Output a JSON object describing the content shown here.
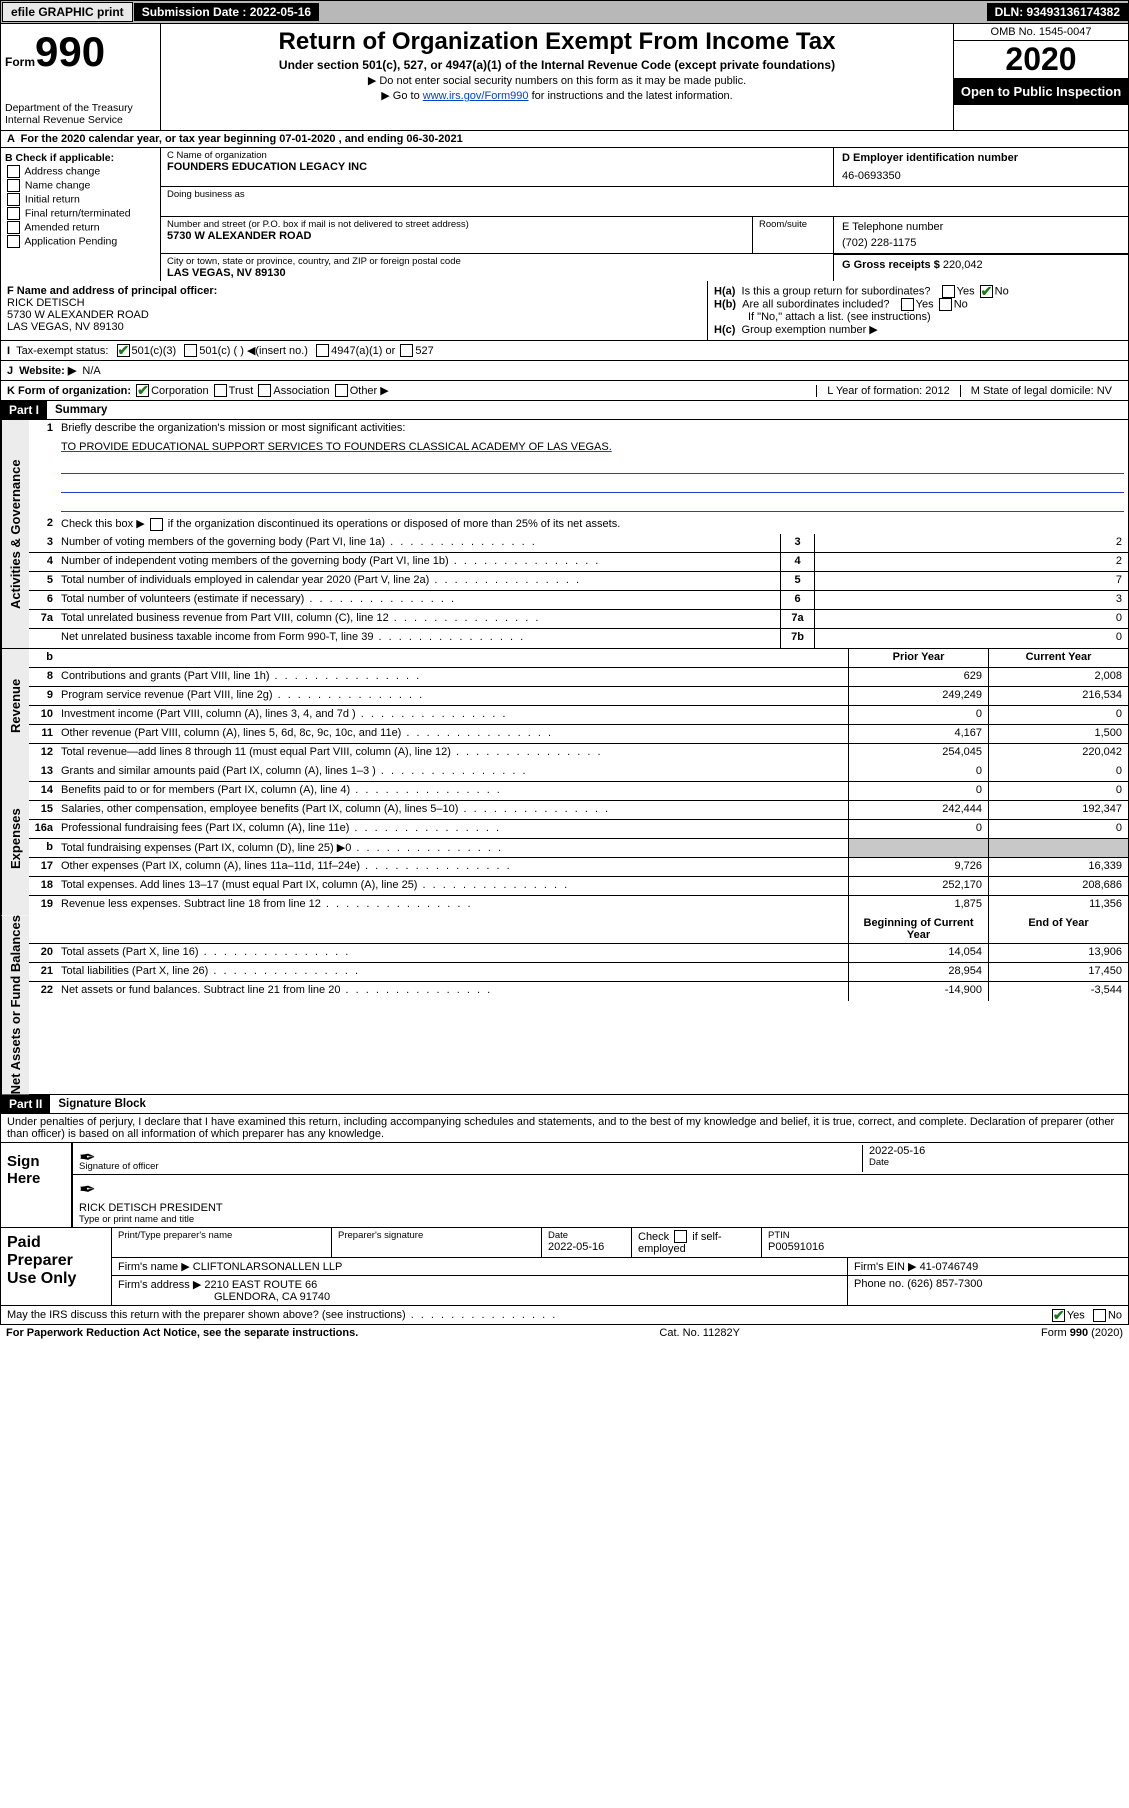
{
  "topbar": {
    "efile": "efile GRAPHIC print",
    "sub_label": "Submission Date : 2022-05-16",
    "dln_label": "DLN: 93493136174382"
  },
  "header": {
    "form_label": "Form",
    "form_num": "990",
    "dept": "Department of the Treasury\nInternal Revenue Service",
    "title": "Return of Organization Exempt From Income Tax",
    "subtitle": "Under section 501(c), 527, or 4947(a)(1) of the Internal Revenue Code (except private foundations)",
    "line1": "Do not enter social security numbers on this form as it may be made public.",
    "line2_pre": "Go to ",
    "line2_link": "www.irs.gov/Form990",
    "line2_post": " for instructions and the latest information.",
    "omb": "OMB No. 1545-0047",
    "year": "2020",
    "inspect": "Open to Public Inspection"
  },
  "row_a": "For the 2020 calendar year, or tax year beginning 07-01-2020    , and ending 06-30-2021",
  "col_b": {
    "hdr": "B Check if applicable:",
    "opts": [
      "Address change",
      "Name change",
      "Initial return",
      "Final return/terminated",
      "Amended return",
      "Application Pending"
    ]
  },
  "col_c": {
    "name_lbl": "C Name of organization",
    "name": "FOUNDERS EDUCATION LEGACY INC",
    "dba_lbl": "Doing business as",
    "addr_lbl": "Number and street (or P.O. box if mail is not delivered to street address)",
    "room_lbl": "Room/suite",
    "addr": "5730 W ALEXANDER ROAD",
    "city_lbl": "City or town, state or province, country, and ZIP or foreign postal code",
    "city": "LAS VEGAS, NV  89130"
  },
  "col_d": {
    "lbl": "D Employer identification number",
    "val": "46-0693350"
  },
  "col_e": {
    "lbl": "E Telephone number",
    "val": "(702) 228-1175"
  },
  "col_g": {
    "lbl": "G Gross receipts $ ",
    "val": "220,042"
  },
  "col_f": {
    "lbl": "F Name and address of principal officer:",
    "name": "RICK DETISCH",
    "addr1": "5730 W ALEXANDER ROAD",
    "addr2": "LAS VEGAS, NV  89130"
  },
  "col_h": {
    "a": "Is this a group return for subordinates?",
    "b": "Are all subordinates included?",
    "note": "If \"No,\" attach a list. (see instructions)",
    "c": "Group exemption number ▶"
  },
  "row_i": {
    "lbl": "Tax-exempt status:",
    "o1": "501(c)(3)",
    "o2": "501(c) (  ) ◀(insert no.)",
    "o3": "4947(a)(1) or",
    "o4": "527"
  },
  "row_j": {
    "lbl": "Website: ▶",
    "val": "N/A"
  },
  "row_k": {
    "lbl": "K Form of organization:",
    "o1": "Corporation",
    "o2": "Trust",
    "o3": "Association",
    "o4": "Other ▶",
    "l": "L Year of formation: 2012",
    "m": "M State of legal domicile: NV"
  },
  "part1": {
    "hdr": "Part I",
    "title": "Summary"
  },
  "summary": {
    "l1_lbl": "Briefly describe the organization's mission or most significant activities:",
    "l1_val": "TO PROVIDE EDUCATIONAL SUPPORT SERVICES TO FOUNDERS CLASSICAL ACADEMY OF LAS VEGAS.",
    "l2": "Check this box ▶      if the organization discontinued its operations or disposed of more than 25% of its net assets.",
    "rows_a": [
      {
        "n": "3",
        "d": "Number of voting members of the governing body (Part VI, line 1a)",
        "b": "3",
        "v": "2"
      },
      {
        "n": "4",
        "d": "Number of independent voting members of the governing body (Part VI, line 1b)",
        "b": "4",
        "v": "2"
      },
      {
        "n": "5",
        "d": "Total number of individuals employed in calendar year 2020 (Part V, line 2a)",
        "b": "5",
        "v": "7"
      },
      {
        "n": "6",
        "d": "Total number of volunteers (estimate if necessary)",
        "b": "6",
        "v": "3"
      },
      {
        "n": "7a",
        "d": "Total unrelated business revenue from Part VIII, column (C), line 12",
        "b": "7a",
        "v": "0"
      },
      {
        "n": "",
        "d": "Net unrelated business taxable income from Form 990-T, line 39",
        "b": "7b",
        "v": "0"
      }
    ],
    "col_hdr_prior": "Prior Year",
    "col_hdr_curr": "Current Year",
    "rows_rev": [
      {
        "n": "8",
        "d": "Contributions and grants (Part VIII, line 1h)",
        "p": "629",
        "c": "2,008"
      },
      {
        "n": "9",
        "d": "Program service revenue (Part VIII, line 2g)",
        "p": "249,249",
        "c": "216,534"
      },
      {
        "n": "10",
        "d": "Investment income (Part VIII, column (A), lines 3, 4, and 7d )",
        "p": "0",
        "c": "0"
      },
      {
        "n": "11",
        "d": "Other revenue (Part VIII, column (A), lines 5, 6d, 8c, 9c, 10c, and 11e)",
        "p": "4,167",
        "c": "1,500"
      },
      {
        "n": "12",
        "d": "Total revenue—add lines 8 through 11 (must equal Part VIII, column (A), line 12)",
        "p": "254,045",
        "c": "220,042"
      }
    ],
    "rows_exp": [
      {
        "n": "13",
        "d": "Grants and similar amounts paid (Part IX, column (A), lines 1–3 )",
        "p": "0",
        "c": "0"
      },
      {
        "n": "14",
        "d": "Benefits paid to or for members (Part IX, column (A), line 4)",
        "p": "0",
        "c": "0"
      },
      {
        "n": "15",
        "d": "Salaries, other compensation, employee benefits (Part IX, column (A), lines 5–10)",
        "p": "242,444",
        "c": "192,347"
      },
      {
        "n": "16a",
        "d": "Professional fundraising fees (Part IX, column (A), line 11e)",
        "p": "0",
        "c": "0"
      },
      {
        "n": "b",
        "d": "Total fundraising expenses (Part IX, column (D), line 25) ▶0",
        "p": "grey",
        "c": "grey"
      },
      {
        "n": "17",
        "d": "Other expenses (Part IX, column (A), lines 11a–11d, 11f–24e)",
        "p": "9,726",
        "c": "16,339"
      },
      {
        "n": "18",
        "d": "Total expenses. Add lines 13–17 (must equal Part IX, column (A), line 25)",
        "p": "252,170",
        "c": "208,686"
      },
      {
        "n": "19",
        "d": "Revenue less expenses. Subtract line 18 from line 12",
        "p": "1,875",
        "c": "11,356"
      }
    ],
    "col_hdr_beg": "Beginning of Current Year",
    "col_hdr_end": "End of Year",
    "rows_net": [
      {
        "n": "20",
        "d": "Total assets (Part X, line 16)",
        "p": "14,054",
        "c": "13,906"
      },
      {
        "n": "21",
        "d": "Total liabilities (Part X, line 26)",
        "p": "28,954",
        "c": "17,450"
      },
      {
        "n": "22",
        "d": "Net assets or fund balances. Subtract line 21 from line 20",
        "p": "-14,900",
        "c": "-3,544"
      }
    ]
  },
  "side_labels": {
    "a": "Activities & Governance",
    "r": "Revenue",
    "e": "Expenses",
    "n": "Net Assets or Fund Balances"
  },
  "part2": {
    "hdr": "Part II",
    "title": "Signature Block"
  },
  "sig": {
    "penalty": "Under penalties of perjury, I declare that I have examined this return, including accompanying schedules and statements, and to the best of my knowledge and belief, it is true, correct, and complete. Declaration of preparer (other than officer) is based on all information of which preparer has any knowledge.",
    "sign_here": "Sign Here",
    "sig_officer": "Signature of officer",
    "date": "Date",
    "date_val": "2022-05-16",
    "name_title": "RICK DETISCH  PRESIDENT",
    "type_lbl": "Type or print name and title"
  },
  "prep": {
    "hdr": "Paid Preparer Use Only",
    "c1": "Print/Type preparer's name",
    "c2": "Preparer's signature",
    "c3_lbl": "Date",
    "c3_val": "2022-05-16",
    "c4": "Check      if self-employed",
    "c5_lbl": "PTIN",
    "c5_val": "P00591016",
    "firm_lbl": "Firm's name    ▶",
    "firm_val": "CLIFTONLARSONALLEN LLP",
    "ein_lbl": "Firm's EIN ▶",
    "ein_val": "41-0746749",
    "addr_lbl": "Firm's address ▶",
    "addr_val1": "2210 EAST ROUTE 66",
    "addr_val2": "GLENDORA, CA  91740",
    "phone_lbl": "Phone no.",
    "phone_val": "(626) 857-7300"
  },
  "irs_discuss": "May the IRS discuss this return with the preparer shown above? (see instructions)",
  "footer": {
    "left": "For Paperwork Reduction Act Notice, see the separate instructions.",
    "mid": "Cat. No. 11282Y",
    "right": "Form 990 (2020)"
  },
  "yn": {
    "yes": "Yes",
    "no": "No"
  }
}
